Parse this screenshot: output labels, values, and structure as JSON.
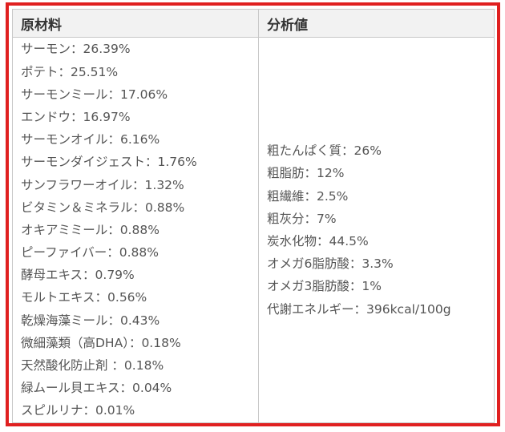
{
  "headers": {
    "ingredients": "原材料",
    "analysis": "分析値"
  },
  "ingredients": [
    "サーモン：26.39%",
    "ポテト：25.51%",
    "サーモンミール：17.06%",
    "エンドウ：16.97%",
    "サーモンオイル：6.16%",
    "サーモンダイジェスト：1.76%",
    "サンフラワーオイル：1.32%",
    "ビタミン＆ミネラル：0.88%",
    "オキアミミール：0.88%",
    "ピーファイバー：0.88%",
    "酵母エキス：0.79%",
    "モルトエキス：0.56%",
    "乾燥海藻ミール：0.43%",
    "微細藻類（高DHA）：0.18%",
    "天然酸化防止剤 ：0.18%",
    "緑ムール貝エキス：0.04%",
    "スピルリナ：0.01%"
  ],
  "analysis": [
    "粗たんぱく質：26%",
    "粗脂肪：12%",
    "粗繊維：2.5%",
    "粗灰分：7%",
    "炭水化物：44.5%",
    "オメガ6脂肪酸：3.3%",
    "オメガ3脂肪酸：1%",
    "代謝エネルギー：396kcal/100g"
  ],
  "colors": {
    "frame_border": "#e02020",
    "header_bg": "#f2f2f2",
    "grid_line": "#c8c8c8"
  }
}
